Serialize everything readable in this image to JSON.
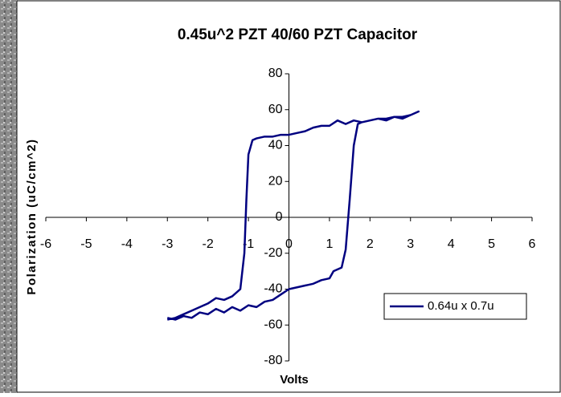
{
  "chart_data": {
    "type": "line",
    "title": "0.45u^2 PZT 40/60 PZT Capacitor",
    "x_label": "Volts",
    "y_label": "Polarization (uC/cm^2)",
    "x": [
      -3,
      -2.8,
      -2.6,
      -2.4,
      -2.2,
      -2,
      -1.8,
      -1.6,
      -1.4,
      -1.2,
      -1,
      -0.8,
      -0.6,
      -0.4,
      -0.2,
      0,
      0.2,
      0.4,
      0.6,
      0.8,
      1,
      1.1,
      1.3,
      1.4,
      1.5,
      1.6,
      1.7,
      1.8,
      2,
      2.2,
      2.4,
      2.6,
      2.8,
      3,
      3.2,
      3,
      2.8,
      2.6,
      2.4,
      2.2,
      2,
      1.8,
      1.6,
      1.4,
      1.2,
      1,
      0.8,
      0.6,
      0.4,
      0.2,
      0,
      -0.2,
      -0.4,
      -0.6,
      -0.8,
      -0.9,
      -1,
      -1.05,
      -1.1,
      -1.2,
      -1.4,
      -1.6,
      -1.8,
      -2,
      -2.2,
      -2.4,
      -2.6,
      -2.8,
      -3
    ],
    "series": [
      {
        "name": "0.64u x 0.7u",
        "color": "#000080",
        "values": [
          -56,
          -57,
          -55,
          -56,
          -53,
          -54,
          -51,
          -53,
          -50,
          -52,
          -49,
          -50,
          -47,
          -46,
          -43,
          -40,
          -39,
          -38,
          -37,
          -35,
          -34,
          -30,
          -28,
          -18,
          10,
          40,
          52,
          53,
          54,
          55,
          55,
          56,
          56,
          57,
          59,
          57,
          55,
          56,
          54,
          55,
          54,
          53,
          54,
          52,
          54,
          51,
          51,
          50,
          48,
          47,
          46,
          46,
          45,
          45,
          44,
          43,
          35,
          10,
          -20,
          -40,
          -44,
          -46,
          -45,
          -48,
          -50,
          -52,
          -54,
          -56,
          -57
        ]
      }
    ],
    "xlim": [
      -6,
      6
    ],
    "xticks": [
      -6,
      -5,
      -4,
      -3,
      -2,
      -1,
      0,
      1,
      2,
      3,
      4,
      5,
      6
    ],
    "ylim": [
      -80,
      80
    ],
    "yticks": [
      -80,
      -60,
      -40,
      -20,
      0,
      20,
      40,
      60,
      80
    ],
    "legend": "right"
  }
}
